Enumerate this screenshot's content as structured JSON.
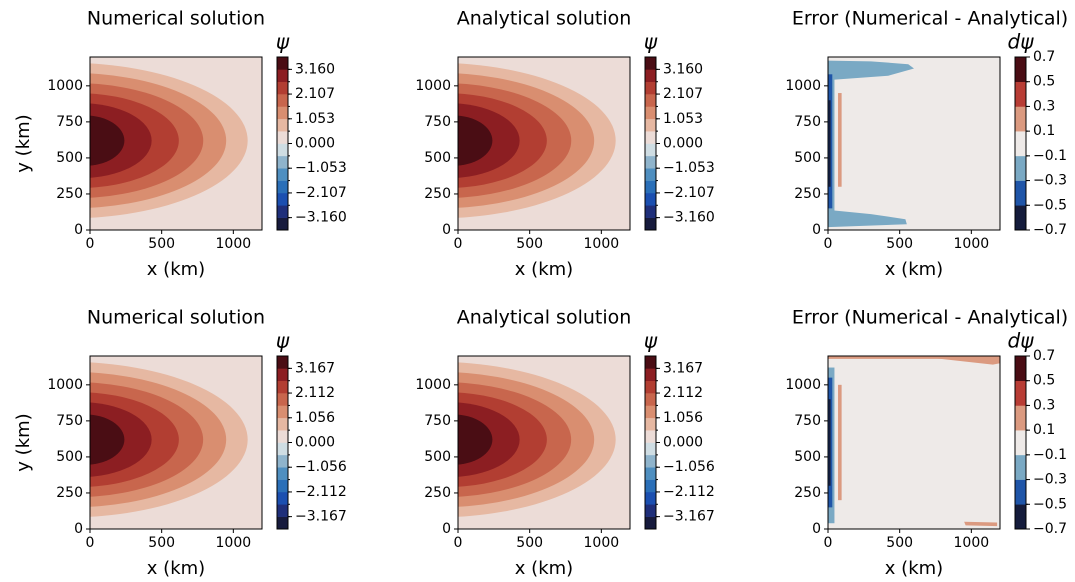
{
  "chart_data": [
    {
      "type": "contour",
      "title": "Numerical solution",
      "xlabel": "x (km)",
      "ylabel": "y (km)",
      "xlim": [
        0,
        1200
      ],
      "ylim": [
        0,
        1200
      ],
      "xticks": [
        0,
        500,
        1000
      ],
      "yticks": [
        0,
        250,
        500,
        750,
        1000
      ],
      "colorbar": {
        "label": "ψ",
        "clim": [
          -3.687,
          3.687
        ],
        "ticks": [
          {
            "value": 3.16,
            "label": "3.160"
          },
          {
            "value": 2.107,
            "label": "2.107"
          },
          {
            "value": 1.053,
            "label": "1.053"
          },
          {
            "value": 0,
            "label": "0.000"
          },
          {
            "value": -1.053,
            "label": "−1.053"
          },
          {
            "value": -2.107,
            "label": "−2.107"
          },
          {
            "value": -3.16,
            "label": "−3.160"
          }
        ],
        "colors": [
          "#171b3d",
          "#1f2f7a",
          "#1b4fb0",
          "#2a6fb8",
          "#4f8fc0",
          "#8fb4cc",
          "#cfdde3",
          "#ecdcd7",
          "#e6b8a2",
          "#d98e70",
          "#c8664d",
          "#b23e32",
          "#8c1e22",
          "#4a0d14"
        ]
      }
    },
    {
      "type": "contour",
      "title": "Analytical solution",
      "xlabel": "x (km)",
      "xlim": [
        0,
        1200
      ],
      "ylim": [
        0,
        1200
      ],
      "xticks": [
        0,
        500,
        1000
      ],
      "yticks": [
        0,
        250,
        500,
        750,
        1000
      ],
      "colorbar": {
        "label": "ψ",
        "clim": [
          -3.687,
          3.687
        ],
        "ticks": [
          {
            "value": 3.16,
            "label": "3.160"
          },
          {
            "value": 2.107,
            "label": "2.107"
          },
          {
            "value": 1.053,
            "label": "1.053"
          },
          {
            "value": 0,
            "label": "0.000"
          },
          {
            "value": -1.053,
            "label": "−1.053"
          },
          {
            "value": -2.107,
            "label": "−2.107"
          },
          {
            "value": -3.16,
            "label": "−3.160"
          }
        ],
        "colors": [
          "#171b3d",
          "#1f2f7a",
          "#1b4fb0",
          "#2a6fb8",
          "#4f8fc0",
          "#8fb4cc",
          "#cfdde3",
          "#ecdcd7",
          "#e6b8a2",
          "#d98e70",
          "#c8664d",
          "#b23e32",
          "#8c1e22",
          "#4a0d14"
        ]
      }
    },
    {
      "type": "contour",
      "title": "Error (Numerical - Analytical)",
      "xlabel": "x (km)",
      "xlim": [
        0,
        1200
      ],
      "ylim": [
        0,
        1200
      ],
      "xticks": [
        0,
        500,
        1000
      ],
      "yticks": [
        0,
        250,
        500,
        750,
        1000
      ],
      "colorbar": {
        "label": "dψ",
        "clim": [
          -0.7,
          0.7
        ],
        "ticks": [
          0.7,
          0.5,
          0.3,
          0.1,
          {
            "value": -0.1,
            "label": "−0.1"
          },
          {
            "value": -0.3,
            "label": "−0.3"
          },
          {
            "value": -0.5,
            "label": "−0.5"
          },
          {
            "value": -0.7,
            "label": "−0.7"
          }
        ],
        "colors": [
          "#151c3c",
          "#1f55a8",
          "#7aa9c4",
          "#eeeae8",
          "#db9a80",
          "#b83d35",
          "#4a0d14"
        ]
      }
    },
    {
      "type": "contour",
      "title": "Numerical solution",
      "xlabel": "x (km)",
      "ylabel": "y (km)",
      "xlim": [
        0,
        1200
      ],
      "ylim": [
        0,
        1200
      ],
      "xticks": [
        0,
        500,
        1000
      ],
      "yticks": [
        0,
        250,
        500,
        750,
        1000
      ],
      "colorbar": {
        "label": "ψ",
        "clim": [
          -3.695,
          3.695
        ],
        "ticks": [
          {
            "value": 3.167,
            "label": "3.167"
          },
          {
            "value": 2.112,
            "label": "2.112"
          },
          {
            "value": 1.056,
            "label": "1.056"
          },
          {
            "value": 0,
            "label": "0.000"
          },
          {
            "value": -1.056,
            "label": "−1.056"
          },
          {
            "value": -2.112,
            "label": "−2.112"
          },
          {
            "value": -3.167,
            "label": "−3.167"
          }
        ],
        "colors": [
          "#171b3d",
          "#1f2f7a",
          "#1b4fb0",
          "#2a6fb8",
          "#4f8fc0",
          "#8fb4cc",
          "#cfdde3",
          "#ecdcd7",
          "#e6b8a2",
          "#d98e70",
          "#c8664d",
          "#b23e32",
          "#8c1e22",
          "#4a0d14"
        ]
      }
    },
    {
      "type": "contour",
      "title": "Analytical solution",
      "xlabel": "x (km)",
      "xlim": [
        0,
        1200
      ],
      "ylim": [
        0,
        1200
      ],
      "xticks": [
        0,
        500,
        1000
      ],
      "yticks": [
        0,
        250,
        500,
        750,
        1000
      ],
      "colorbar": {
        "label": "ψ",
        "clim": [
          -3.695,
          3.695
        ],
        "ticks": [
          {
            "value": 3.167,
            "label": "3.167"
          },
          {
            "value": 2.112,
            "label": "2.112"
          },
          {
            "value": 1.056,
            "label": "1.056"
          },
          {
            "value": 0,
            "label": "0.000"
          },
          {
            "value": -1.056,
            "label": "−1.056"
          },
          {
            "value": -2.112,
            "label": "−2.112"
          },
          {
            "value": -3.167,
            "label": "−3.167"
          }
        ],
        "colors": [
          "#171b3d",
          "#1f2f7a",
          "#1b4fb0",
          "#2a6fb8",
          "#4f8fc0",
          "#8fb4cc",
          "#cfdde3",
          "#ecdcd7",
          "#e6b8a2",
          "#d98e70",
          "#c8664d",
          "#b23e32",
          "#8c1e22",
          "#4a0d14"
        ]
      }
    },
    {
      "type": "contour",
      "title": "Error (Numerical - Analytical)",
      "xlabel": "x (km)",
      "xlim": [
        0,
        1200
      ],
      "ylim": [
        0,
        1200
      ],
      "xticks": [
        0,
        500,
        1000
      ],
      "yticks": [
        0,
        250,
        500,
        750,
        1000
      ],
      "colorbar": {
        "label": "dψ",
        "clim": [
          -0.7,
          0.7
        ],
        "ticks": [
          0.7,
          0.5,
          0.3,
          0.1,
          {
            "value": -0.1,
            "label": "−0.1"
          },
          {
            "value": -0.3,
            "label": "−0.3"
          },
          {
            "value": -0.5,
            "label": "−0.5"
          },
          {
            "value": -0.7,
            "label": "−0.7"
          }
        ],
        "colors": [
          "#151c3c",
          "#1f55a8",
          "#7aa9c4",
          "#eeeae8",
          "#db9a80",
          "#b83d35",
          "#4a0d14"
        ]
      }
    }
  ]
}
